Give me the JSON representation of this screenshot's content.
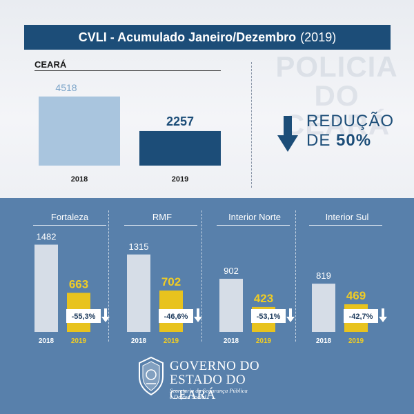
{
  "title": {
    "bold": "CVLI - Acumulado Janeiro/Dezembro",
    "year": "(2019)"
  },
  "watermark": "POLICIA DO CEARÁ",
  "reduction": {
    "line1": "REDUÇÃO",
    "line2_prefix": "DE",
    "percent": "50%"
  },
  "colors": {
    "title_bg": "#1c4d78",
    "bar_2018_main": "#a9c5de",
    "bar_2019_main": "#1c4d78",
    "bar_2018_region": "#d6dde7",
    "bar_2019_region": "#e8c31e",
    "bottom_bg": "#5880ab",
    "arrow": "#1c4d78"
  },
  "chart_data": [
    {
      "type": "bar",
      "title": "CEARÁ",
      "categories": [
        "2018",
        "2019"
      ],
      "values": [
        4518,
        2257
      ],
      "value_labels": [
        "4518",
        "2257"
      ],
      "ylim": [
        0,
        4600
      ]
    },
    {
      "type": "bar",
      "title": "Fortaleza",
      "categories": [
        "2018",
        "2019"
      ],
      "values": [
        1482,
        663
      ],
      "value_labels": [
        "1482",
        "663"
      ],
      "change": "-55,3%",
      "ylim": [
        0,
        1500
      ]
    },
    {
      "type": "bar",
      "title": "RMF",
      "categories": [
        "2018",
        "2019"
      ],
      "values": [
        1315,
        702
      ],
      "value_labels": [
        "1315",
        "702"
      ],
      "change": "-46,6%",
      "ylim": [
        0,
        1500
      ]
    },
    {
      "type": "bar",
      "title": "Interior Norte",
      "categories": [
        "2018",
        "2019"
      ],
      "values": [
        902,
        423
      ],
      "value_labels": [
        "902",
        "423"
      ],
      "change": "-53,1%",
      "ylim": [
        0,
        1500
      ]
    },
    {
      "type": "bar",
      "title": "Interior Sul",
      "categories": [
        "2018",
        "2019"
      ],
      "values": [
        819,
        469
      ],
      "value_labels": [
        "819",
        "469"
      ],
      "change": "-42,7%",
      "ylim": [
        0,
        1500
      ]
    }
  ],
  "footer": {
    "line1": "GOVERNO DO",
    "line2": "ESTADO DO CEARÁ",
    "sub1": "Secretaria da Segurança Pública",
    "sub2": "e Defesa Social",
    "emblem_icon": "coat-of-arms-icon"
  }
}
